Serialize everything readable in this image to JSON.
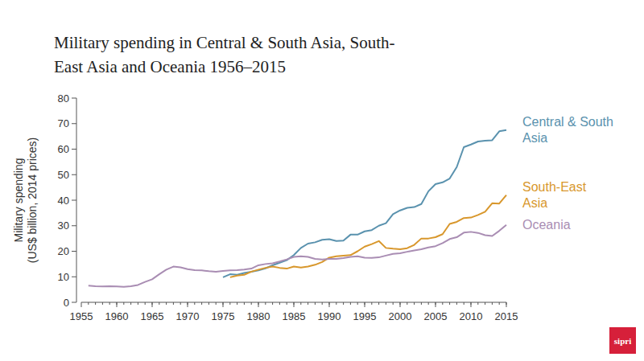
{
  "chart_data": {
    "type": "line",
    "title": "Military spending in Central & South Asia, South-East Asia and Oceania 1956–2015",
    "y_label": "Military spending (US$ billion, 2014 prices)",
    "x": [
      1956,
      1957,
      1958,
      1959,
      1960,
      1961,
      1962,
      1963,
      1964,
      1965,
      1966,
      1967,
      1968,
      1969,
      1970,
      1971,
      1972,
      1973,
      1974,
      1975,
      1976,
      1977,
      1978,
      1979,
      1980,
      1981,
      1982,
      1983,
      1984,
      1985,
      1986,
      1987,
      1988,
      1989,
      1990,
      1991,
      1992,
      1993,
      1994,
      1995,
      1996,
      1997,
      1998,
      1999,
      2000,
      2001,
      2002,
      2003,
      2004,
      2005,
      2006,
      2007,
      2008,
      2009,
      2010,
      2011,
      2012,
      2013,
      2014,
      2015
    ],
    "series": [
      {
        "name": "Central & South Asia",
        "color": "#5a92ae",
        "values": [
          null,
          null,
          null,
          null,
          null,
          null,
          null,
          null,
          null,
          null,
          null,
          null,
          null,
          null,
          null,
          null,
          null,
          null,
          null,
          9.8,
          11,
          10.8,
          11.5,
          12,
          12.5,
          13.3,
          14.5,
          15.5,
          16.5,
          18.5,
          21.3,
          23,
          23.5,
          24.5,
          24.7,
          24,
          24.2,
          26.5,
          26.5,
          27.8,
          28.3,
          30,
          31,
          34.5,
          36,
          37,
          37.3,
          38.5,
          43.5,
          46.3,
          47,
          48.5,
          53,
          60.8,
          61.8,
          63,
          63.3,
          63.5,
          67,
          67.5
        ]
      },
      {
        "name": "South-East Asia",
        "color": "#d8972c",
        "values": [
          null,
          null,
          null,
          null,
          null,
          null,
          null,
          null,
          null,
          null,
          null,
          null,
          null,
          null,
          null,
          null,
          null,
          null,
          null,
          null,
          9.8,
          10.5,
          10.8,
          12,
          12.8,
          13.5,
          14,
          13.5,
          13.2,
          14,
          13.6,
          14,
          14.7,
          15.8,
          17.5,
          18,
          18.3,
          18.5,
          20,
          21.8,
          22.8,
          24,
          21.3,
          21,
          20.8,
          21.2,
          22.5,
          25,
          25,
          25.5,
          26.7,
          30.7,
          31.5,
          33,
          33.2,
          34.2,
          35.5,
          38.8,
          38.7,
          42
        ]
      },
      {
        "name": "Oceania",
        "color": "#a98db3",
        "values": [
          6.5,
          6.3,
          6.2,
          6.3,
          6.2,
          6.1,
          6.3,
          6.8,
          8,
          9,
          11,
          12.8,
          14,
          13.7,
          13,
          12.6,
          12.5,
          12.2,
          12,
          12.3,
          12.5,
          12.6,
          12.8,
          13.2,
          14.5,
          15,
          15.3,
          16,
          16.8,
          17.8,
          18,
          17.8,
          17,
          16.8,
          17,
          17,
          17.3,
          17.8,
          18,
          17.5,
          17.4,
          17.6,
          18.3,
          19,
          19.2,
          19.8,
          20.3,
          20.8,
          21.5,
          22,
          23.2,
          24.8,
          25.5,
          27.3,
          27.6,
          27.2,
          26.3,
          26,
          28,
          30.3
        ]
      }
    ],
    "xlim": [
      1955,
      2015
    ],
    "xticks": [
      1955,
      1960,
      1965,
      1970,
      1975,
      1980,
      1985,
      1990,
      1995,
      2000,
      2005,
      2010,
      2015
    ],
    "ylim": [
      0,
      80
    ],
    "yticks": [
      0,
      10,
      20,
      30,
      40,
      50,
      60,
      70,
      80
    ],
    "grid": false,
    "legend": "right",
    "logo": "sipri"
  }
}
